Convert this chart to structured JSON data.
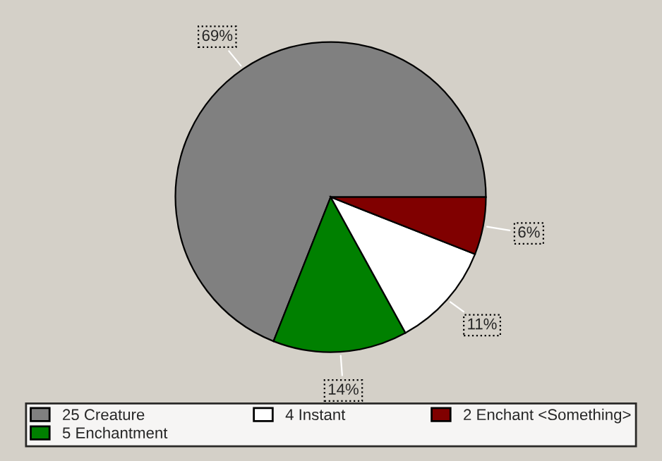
{
  "chart_data": {
    "type": "pie",
    "categories": [
      "25 Creature",
      "5 Enchantment",
      "4 Instant",
      "2 Enchant <Something>"
    ],
    "values": [
      69,
      14,
      11,
      6
    ],
    "colors": [
      "#808080",
      "#008000",
      "#ffffff",
      "#800000"
    ],
    "value_labels": [
      "69%",
      "14%",
      "11%",
      "6%"
    ],
    "legend": "bottom"
  }
}
